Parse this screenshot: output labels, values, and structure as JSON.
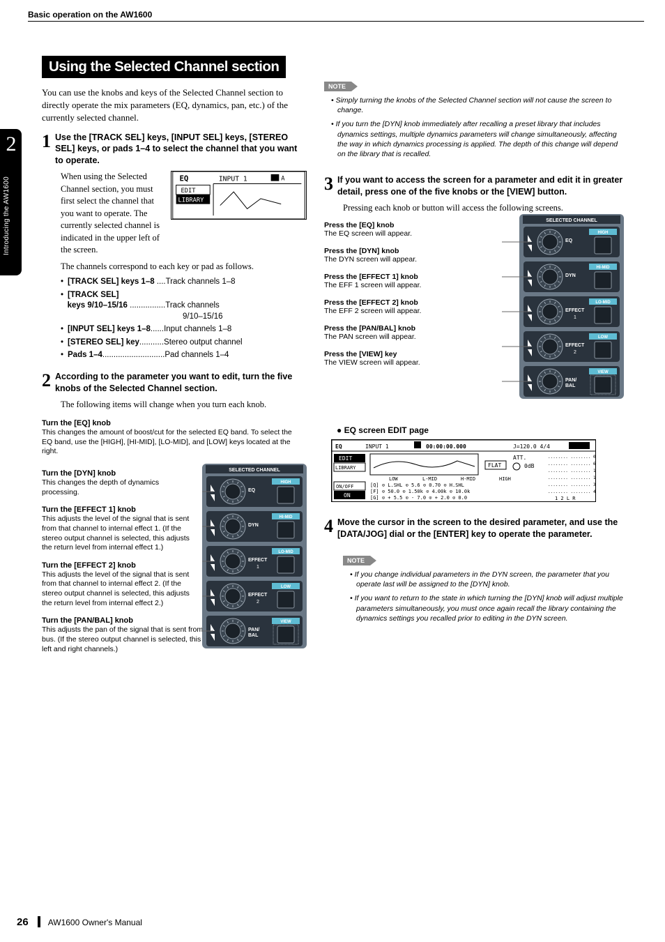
{
  "header": {
    "breadcrumb": "Basic operation on the AW1600"
  },
  "chapter": {
    "number": "2",
    "label": "Introducing the AW1600"
  },
  "title": "Using the Selected Channel section",
  "intro": "You can use the knobs and keys of the Selected Channel section to directly operate the mix parameters (EQ, dynamics, pan, etc.) of the currently selected channel.",
  "step1": {
    "head": "Use the [TRACK SEL] keys, [INPUT SEL] keys, [STEREO SEL] keys, or pads 1–4 to select the channel that you want to operate.",
    "body1": "When using the Selected Channel section, you must first select the channel that you want to operate. The currently selected channel is indicated in the upper left of the screen.",
    "body2": "The channels correspond to each key or pad as follows.",
    "bullets": [
      {
        "k": "[TRACK SEL] keys 1–8",
        "dots": "....",
        "v": "Track channels 1–8"
      },
      {
        "k": "[TRACK SEL] keys 9/10–15/16",
        "dots": "................",
        "v": "Track channels 9/10–15/16"
      },
      {
        "k": "[INPUT SEL] keys 1–8",
        "dots": "......",
        "v": "Input channels 1–8"
      },
      {
        "k": "[STEREO SEL] key",
        "dots": "...........",
        "v": "Stereo output channel"
      },
      {
        "k": "Pads 1–4",
        "dots": "............................",
        "v": "Pad channels 1–4"
      }
    ],
    "lcd": {
      "label_eq": "EQ",
      "label_input": "INPUT 1",
      "edit": "EDIT",
      "library": "LIBRARY"
    }
  },
  "step2": {
    "head": "According to the parameter you want to edit, turn the five knobs of the Selected Channel section.",
    "body": "The following items will change when you turn each knob.",
    "knobs": [
      {
        "h": "Turn the [EQ] knob",
        "b": "This changes the amount of boost/cut for the selected EQ band. To select the EQ band, use the [HIGH], [HI-MID], [LO-MID], and [LOW] keys located at the right."
      },
      {
        "h": "Turn the [DYN] knob",
        "b": "This changes the depth of dynamics processing."
      },
      {
        "h": "Turn the [EFFECT 1] knob",
        "b": "This adjusts the level of the signal that is sent from that channel to internal effect 1. (If the stereo output channel is selected, this adjusts the return level from internal effect 1.)"
      },
      {
        "h": "Turn the [EFFECT 2] knob",
        "b": "This adjusts the level of the signal that is sent from that channel to internal effect 2. (If the stereo output channel is selected, this adjusts the return level from internal effect 2.)"
      },
      {
        "h": "Turn the [PAN/BAL] knob",
        "b": "This adjusts the pan of the signal that is sent from that channel to the stereo bus. (If the stereo output channel is selected, this adjusts the balance of the left and right channels.)"
      }
    ]
  },
  "panel": {
    "title": "SELECTED CHANNEL",
    "bg": "#6a7886",
    "dark": "#2a333d",
    "text": "#ffffff",
    "accent": "#5fbcd3",
    "rows": [
      {
        "knob": "EQ",
        "key": "HIGH"
      },
      {
        "knob": "DYN",
        "key": "HI-MID"
      },
      {
        "knob": "EFFECT",
        "sub": "1",
        "key": "LO-MID"
      },
      {
        "knob": "EFFECT",
        "sub": "2",
        "key": "LOW"
      },
      {
        "knob": "PAN/",
        "sub2": "BAL",
        "key": "VIEW"
      }
    ]
  },
  "note1": {
    "tag": "NOTE",
    "items": [
      "Simply turning the knobs of the Selected Channel section will not cause the screen to change.",
      "If you turn the [DYN] knob immediately after recalling a preset library that includes dynamics settings, multiple dynamics parameters will change simultaneously, affecting the way in which dynamics processing is applied. The depth of this change will depend on the library that is recalled."
    ]
  },
  "step3": {
    "head": "If you want to access the screen for a parameter and edit it in greater detail, press one of the five knobs or the [VIEW] button.",
    "body": "Pressing each knob or button will access the following screens.",
    "press": [
      {
        "h": "Press the [EQ] knob",
        "b": "The EQ screen will appear."
      },
      {
        "h": "Press the [DYN] knob",
        "b": "The DYN screen will appear."
      },
      {
        "h": "Press the [EFFECT 1] knob",
        "b": "The EFF 1 screen will appear."
      },
      {
        "h": "Press the [EFFECT 2] knob",
        "b": "The EFF 2 screen will appear."
      },
      {
        "h": "Press the [PAN/BAL] knob",
        "b": "The PAN screen will appear."
      },
      {
        "h": "Press the [VIEW] key",
        "b": "The VIEW screen will appear."
      }
    ]
  },
  "eq_section": {
    "title": "EQ screen EDIT page",
    "lcd": {
      "top": "EQ    INPUT 1        00:00:00.000    J=120.0 4/4",
      "left": [
        "EDIT",
        "LIBRARY",
        "",
        "ON/OFF",
        "ON"
      ],
      "cols": [
        "LOW",
        "L-MID",
        "H-MID",
        "HIGH"
      ],
      "flat": "FLAT",
      "att": "ATT.",
      "att_val": "0dB",
      "rows": [
        [
          "[Q]",
          "L.SHL",
          "5.6",
          "0.70",
          "H.SHL"
        ],
        [
          "[F]",
          "50.0",
          "1.50k",
          "4.00k",
          "10.0k"
        ],
        [
          "[G]",
          "+ 5.5",
          "- 7.0",
          "+ 2.0",
          "0.0"
        ]
      ],
      "scale": [
        "0",
        "6",
        "12",
        "18",
        "30",
        "48"
      ]
    }
  },
  "step4": {
    "head": "Move the cursor in the screen to the desired parameter, and use the [DATA/JOG] dial or the [ENTER] key to operate the parameter."
  },
  "note2": {
    "tag": "NOTE",
    "items": [
      "If you change individual parameters in the DYN screen, the parameter that you operate last will be assigned to the [DYN] knob.",
      "If you want to return to the state in which turning the [DYN] knob will adjust multiple parameters simultaneously, you must once again recall the library containing the dynamics settings you recalled prior to editing in the DYN screen."
    ]
  },
  "footer": {
    "page": "26",
    "manual": "AW1600  Owner's Manual"
  }
}
